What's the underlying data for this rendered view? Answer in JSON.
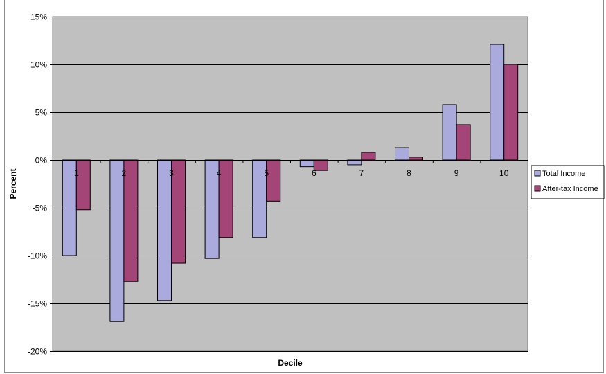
{
  "chart_data": {
    "type": "bar",
    "title": "",
    "xlabel": "Decile",
    "ylabel": "Percent",
    "categories": [
      "1",
      "2",
      "3",
      "4",
      "5",
      "6",
      "7",
      "8",
      "9",
      "10"
    ],
    "series": [
      {
        "name": "Total Income",
        "color": "#aaaadc",
        "values": [
          -10.0,
          -16.9,
          -14.7,
          -10.3,
          -8.1,
          -0.7,
          -0.5,
          1.3,
          5.8,
          12.1
        ]
      },
      {
        "name": "After-tax Income",
        "color": "#a34577",
        "values": [
          -5.2,
          -12.7,
          -10.8,
          -8.1,
          -4.3,
          -1.1,
          0.8,
          0.3,
          3.7,
          10.0
        ]
      }
    ],
    "ylim": [
      -20,
      15
    ],
    "yticks": [
      15,
      10,
      5,
      0,
      -5,
      -10,
      -15,
      -20
    ],
    "ytick_format": "percent",
    "grid": true,
    "legend_position": "right",
    "plot_background": "#c0c0c0",
    "gridline_color": "#000000"
  }
}
